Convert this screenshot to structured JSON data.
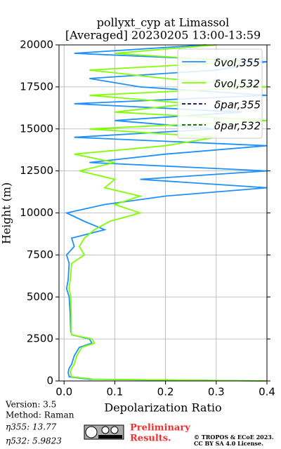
{
  "chart_data": {
    "type": "line",
    "title": "pollyxt_cyp at Limassol",
    "subtitle": "[Averaged] 20230205 13:00-13:59",
    "x_label": "Depolarization Ratio",
    "y_label": "Height (m)",
    "y": [
      0,
      100,
      250,
      500,
      750,
      1000,
      1500,
      2000,
      2250,
      2500,
      2750,
      3000,
      4000,
      5000,
      5500,
      6000,
      7000,
      7500,
      8000,
      8500,
      9000,
      9500,
      10000,
      10500,
      11000,
      11500,
      12000,
      12500,
      13000,
      13500,
      14000,
      14500,
      15000,
      15500,
      16000,
      16500,
      17000,
      17500,
      18000,
      18500,
      19000,
      19500,
      20000
    ],
    "series": [
      {
        "name": "δvol,355",
        "color": "#1e90ff",
        "dash": false,
        "values": [
          0.4,
          0.05,
          0.01,
          0.008,
          0.01,
          0.015,
          0.02,
          0.03,
          0.055,
          0.05,
          0.015,
          0.013,
          0.012,
          0.01,
          0.005,
          0.008,
          0.01,
          0.005,
          0.02,
          0.015,
          0.08,
          0.04,
          0.005,
          0.08,
          0.2,
          0.4,
          0.15,
          0.4,
          0.05,
          0.2,
          0.4,
          0.02,
          0.3,
          0.1,
          0.35,
          0.02,
          0.4,
          0.15,
          0.05,
          0.3,
          0.4,
          0.02,
          0.28
        ]
      },
      {
        "name": "δvol,532",
        "color": "#80ff00",
        "dash": false,
        "values": [
          0.4,
          0.06,
          0.015,
          0.012,
          0.015,
          0.02,
          0.025,
          0.035,
          0.06,
          0.055,
          0.015,
          0.014,
          0.014,
          0.013,
          0.01,
          0.012,
          0.015,
          0.04,
          0.03,
          0.04,
          0.06,
          0.09,
          0.15,
          0.1,
          0.15,
          0.08,
          0.1,
          0.03,
          0.1,
          0.02,
          0.2,
          0.3,
          0.05,
          0.4,
          0.1,
          0.25,
          0.05,
          0.4,
          0.2,
          0.05,
          0.35,
          0.1,
          0.3
        ]
      },
      {
        "name": "δpar,355",
        "color": "#00008b",
        "dash": true,
        "values": [
          null,
          null,
          null,
          null,
          null,
          null,
          null,
          null,
          null,
          null,
          null,
          null,
          null,
          null,
          null,
          null,
          null,
          null,
          null,
          null,
          null,
          null,
          null,
          null,
          null,
          null,
          null,
          null,
          null,
          null,
          null,
          null,
          null,
          null,
          null,
          null,
          null,
          null,
          null,
          null,
          null,
          null,
          null
        ]
      },
      {
        "name": "δpar,532",
        "color": "#006400",
        "dash": true,
        "values": [
          null,
          null,
          null,
          null,
          null,
          null,
          null,
          null,
          null,
          null,
          null,
          null,
          null,
          null,
          null,
          null,
          null,
          null,
          null,
          null,
          null,
          null,
          null,
          null,
          null,
          null,
          null,
          null,
          null,
          null,
          null,
          null,
          null,
          null,
          null,
          null,
          null,
          null,
          null,
          null,
          null,
          null,
          null
        ]
      }
    ],
    "xlim": [
      -0.01,
      0.4
    ],
    "xticks": [
      {
        "value": 0,
        "label": "0.0"
      },
      0.1,
      0.2,
      0.3,
      0.4
    ],
    "ylim": [
      0,
      20000
    ],
    "yticks": [
      0,
      2500,
      5000,
      7500,
      10000,
      12500,
      15000,
      17500,
      20000
    ],
    "grid": true,
    "legend": "upper right",
    "annotations": [
      "Version: 3.5",
      "Method: Raman",
      "η355:  13.77",
      "η532: 5.9823"
    ],
    "notice": [
      "Preliminary",
      "Results."
    ],
    "license": [
      "© TROPOS & ECoE 2023.",
      "CC BY SA 4.0 License."
    ]
  }
}
